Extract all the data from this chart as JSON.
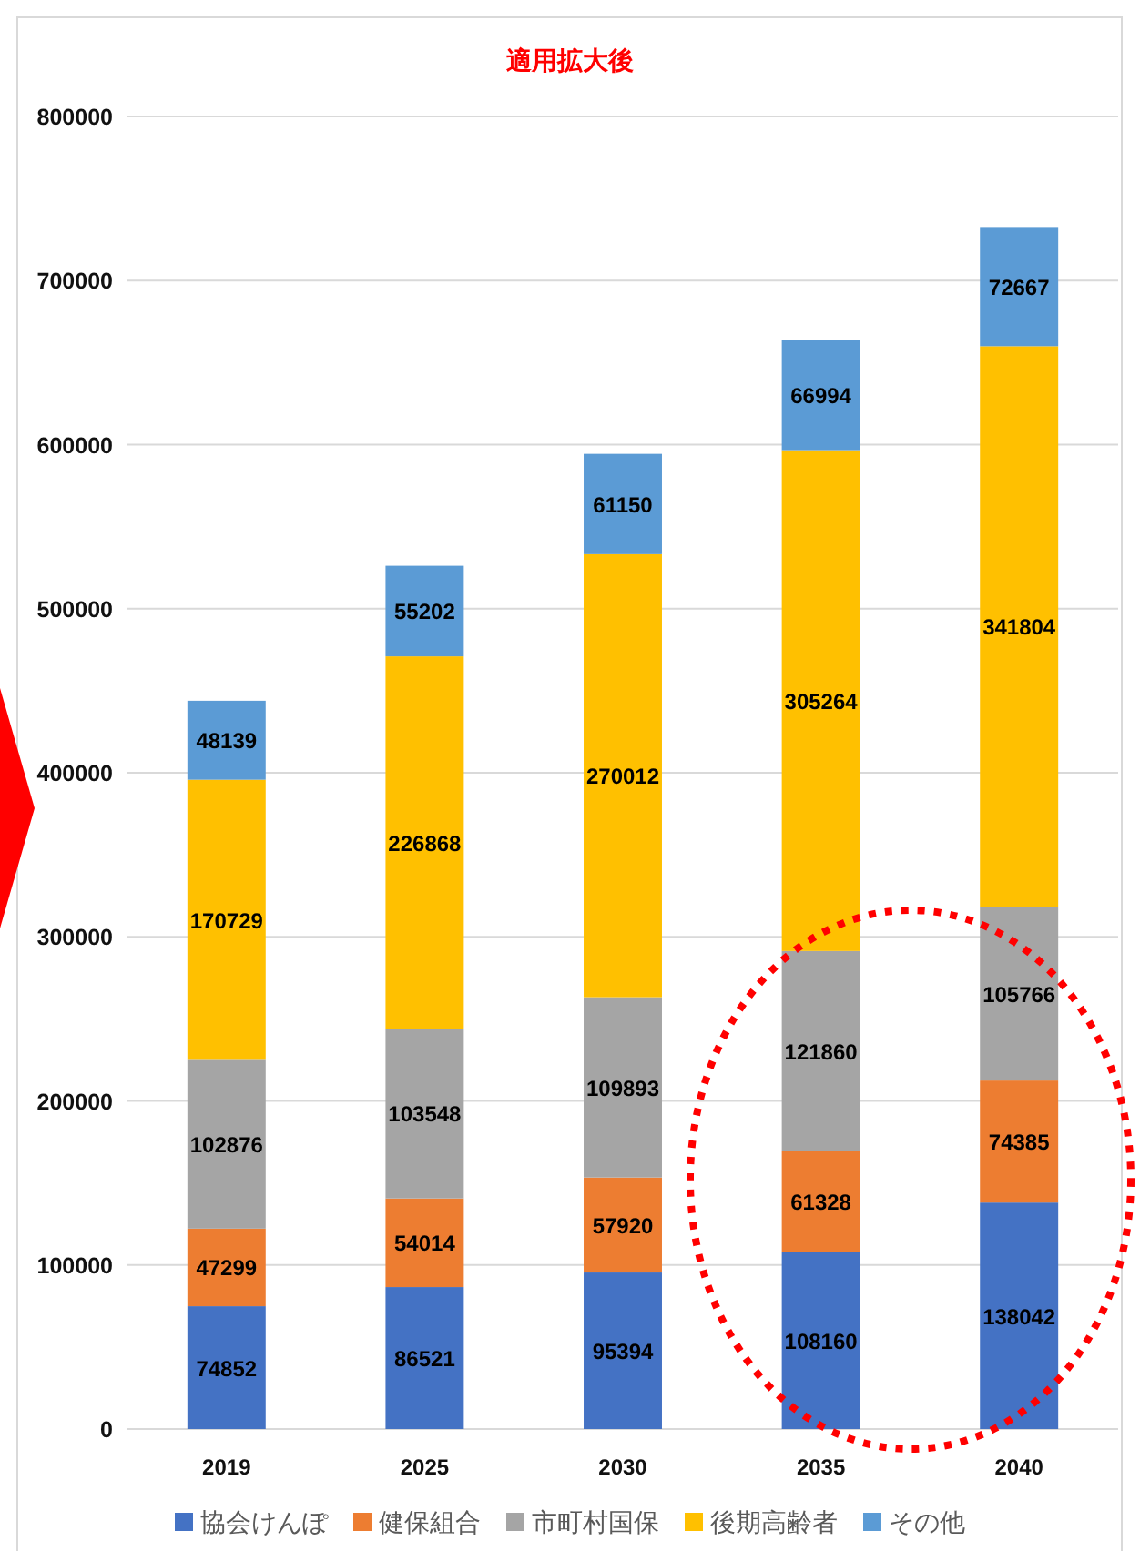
{
  "chart_data": {
    "type": "bar",
    "stacked": true,
    "title": "適用拡大後",
    "categories": [
      "2019",
      "2025",
      "2030",
      "2035",
      "2040"
    ],
    "series": [
      {
        "name": "協会けんぽ",
        "color": "#4472c4",
        "values": [
          74852,
          86521,
          95394,
          108160,
          138042
        ]
      },
      {
        "name": "健保組合",
        "color": "#ed7d31",
        "values": [
          47299,
          54014,
          57920,
          61328,
          74385
        ]
      },
      {
        "name": "市町村国保",
        "color": "#a5a5a5",
        "values": [
          102876,
          103548,
          109893,
          121860,
          105766
        ]
      },
      {
        "name": "後期高齢者",
        "color": "#ffc000",
        "values": [
          170729,
          226868,
          270012,
          305264,
          341804
        ]
      },
      {
        "name": "その他",
        "color": "#5b9bd5",
        "values": [
          48139,
          55202,
          61150,
          66994,
          72667
        ]
      }
    ],
    "ylim": [
      0,
      800000
    ],
    "yticks": [
      0,
      100000,
      200000,
      300000,
      400000,
      500000,
      600000,
      700000,
      800000
    ],
    "grid": "y",
    "legend": "bottom",
    "data_labels": true
  }
}
